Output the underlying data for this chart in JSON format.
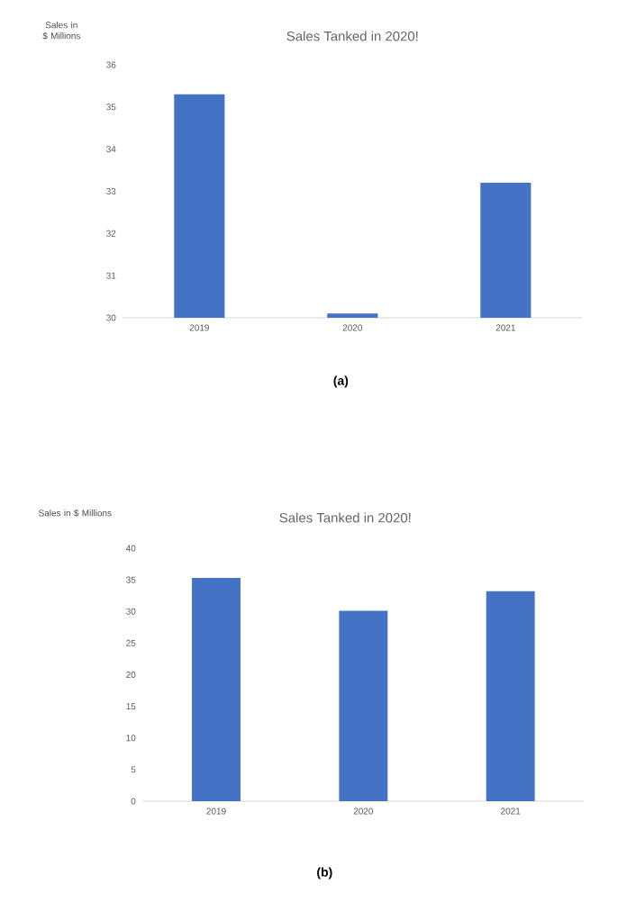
{
  "chart_data": [
    {
      "type": "bar",
      "title": "Sales Tanked in 2020!",
      "ylabel": "Sales in $ Millions",
      "categories": [
        "2019",
        "2020",
        "2021"
      ],
      "values": [
        35.3,
        30.1,
        33.2
      ],
      "color": "#4472c4",
      "ylim": [
        30,
        36
      ],
      "yticks": [
        30,
        31,
        32,
        33,
        34,
        35,
        36
      ],
      "grid": false,
      "annotations": [
        "(a)"
      ]
    },
    {
      "type": "bar",
      "title": "Sales Tanked in 2020!",
      "ylabel": "Sales in $ Millions",
      "categories": [
        "2019",
        "2020",
        "2021"
      ],
      "values": [
        35.3,
        30.1,
        33.2
      ],
      "color": "#4472c4",
      "ylim": [
        0,
        40
      ],
      "yticks": [
        0,
        5,
        10,
        15,
        20,
        25,
        30,
        35,
        40
      ],
      "grid": false,
      "annotations": [
        "(b)"
      ]
    }
  ]
}
